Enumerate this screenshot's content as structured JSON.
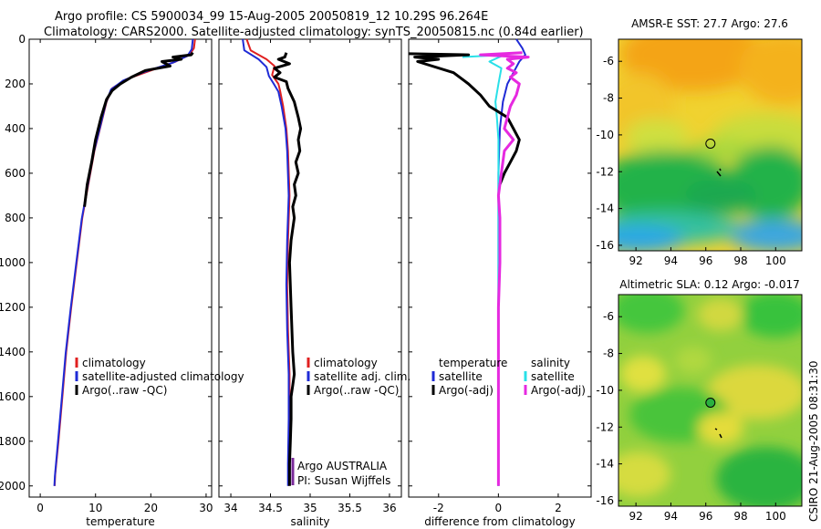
{
  "titles": {
    "line1": "Argo profile: CS 5900034_99 15-Aug-2005 20050819_12 10.29S 96.264E",
    "line2": "Climatology: CARS2000. Satellite-adjusted climatology: synTS_20050815.nc (0.84d earlier)"
  },
  "side_label": "CSIRO 21-Aug-2005 08:31:30",
  "credits": [
    "Argo AUSTRALIA",
    "PI: Susan Wijffels"
  ],
  "colors": {
    "climatology": "#e02020",
    "satellite": "#1f2bd6",
    "argo": "#000000",
    "sat_salinity": "#29e0e8",
    "argo_salinity": "#e629e0"
  },
  "chart_data": [
    {
      "id": "temperature",
      "type": "line",
      "xlabel": "temperature",
      "ylabel": "",
      "xlim": [
        -2,
        31
      ],
      "ylim": [
        2050,
        0
      ],
      "xticks": [
        0,
        10,
        20,
        30
      ],
      "yticks": [
        0,
        200,
        400,
        600,
        800,
        1000,
        1200,
        1400,
        1600,
        1800,
        2000
      ],
      "legend": [
        "climatology",
        "satellite-adjusted climatology",
        "Argo(..raw -QC)"
      ],
      "series": [
        {
          "name": "climatology",
          "color": "#e02020",
          "width": 2,
          "points": [
            [
              28,
              0
            ],
            [
              27.8,
              40
            ],
            [
              27,
              70
            ],
            [
              24.5,
              100
            ],
            [
              20,
              140
            ],
            [
              15.5,
              180
            ],
            [
              13,
              220
            ],
            [
              12,
              280
            ],
            [
              11,
              380
            ],
            [
              9.8,
              500
            ],
            [
              8.7,
              650
            ],
            [
              7.6,
              800
            ],
            [
              6.6,
              1000
            ],
            [
              5.6,
              1200
            ],
            [
              4.7,
              1400
            ],
            [
              4,
              1600
            ],
            [
              3.3,
              1800
            ],
            [
              2.7,
              1950
            ],
            [
              2.6,
              2000
            ]
          ]
        },
        {
          "name": "satellite-adjusted climatology",
          "color": "#1f2bd6",
          "width": 2,
          "points": [
            [
              27.6,
              0
            ],
            [
              27.4,
              45
            ],
            [
              26.6,
              75
            ],
            [
              24,
              105
            ],
            [
              19,
              145
            ],
            [
              15,
              185
            ],
            [
              12.8,
              225
            ],
            [
              11.9,
              285
            ],
            [
              10.9,
              385
            ],
            [
              9.7,
              505
            ],
            [
              8.6,
              655
            ],
            [
              7.5,
              805
            ],
            [
              6.5,
              1005
            ],
            [
              5.5,
              1205
            ],
            [
              4.6,
              1405
            ],
            [
              3.9,
              1605
            ],
            [
              3.2,
              1805
            ],
            [
              2.65,
              1955
            ],
            [
              2.55,
              2000
            ]
          ]
        },
        {
          "name": "Argo(..raw -QC)",
          "color": "#000000",
          "width": 3,
          "points": [
            [
              27.6,
              60
            ],
            [
              27.3,
              70
            ],
            [
              24,
              80
            ],
            [
              25.5,
              90
            ],
            [
              22,
              100
            ],
            [
              23.5,
              120
            ],
            [
              19,
              140
            ],
            [
              16.5,
              170
            ],
            [
              14.5,
              200
            ],
            [
              13,
              230
            ],
            [
              12,
              270
            ],
            [
              11,
              350
            ],
            [
              10,
              450
            ],
            [
              9.3,
              550
            ],
            [
              8.5,
              650
            ],
            [
              8,
              750
            ]
          ]
        }
      ]
    },
    {
      "id": "salinity",
      "type": "line",
      "xlabel": "salinity",
      "ylabel": "",
      "xlim": [
        33.85,
        36.15
      ],
      "ylim": [
        2050,
        0
      ],
      "xticks": [
        34,
        34.5,
        35,
        35.5,
        36
      ],
      "yticks": [
        0,
        200,
        400,
        600,
        800,
        1000,
        1200,
        1400,
        1600,
        1800,
        2000
      ],
      "legend": [
        "climatology",
        "satellite adj. clim.",
        "Argo(..raw -QC)"
      ],
      "series": [
        {
          "name": "climatology",
          "color": "#e02020",
          "width": 2,
          "points": [
            [
              34.2,
              0
            ],
            [
              34.25,
              50
            ],
            [
              34.45,
              90
            ],
            [
              34.55,
              120
            ],
            [
              34.52,
              160
            ],
            [
              34.6,
              200
            ],
            [
              34.62,
              230
            ],
            [
              34.66,
              300
            ],
            [
              34.7,
              400
            ],
            [
              34.72,
              500
            ],
            [
              34.74,
              700
            ],
            [
              34.72,
              900
            ],
            [
              34.71,
              1100
            ],
            [
              34.72,
              1300
            ],
            [
              34.74,
              1500
            ],
            [
              34.74,
              1700
            ],
            [
              34.73,
              1900
            ],
            [
              34.73,
              2000
            ]
          ]
        },
        {
          "name": "satellite adj. clim.",
          "color": "#1f2bd6",
          "width": 2,
          "points": [
            [
              34.15,
              0
            ],
            [
              34.17,
              50
            ],
            [
              34.35,
              90
            ],
            [
              34.45,
              125
            ],
            [
              34.48,
              165
            ],
            [
              34.55,
              205
            ],
            [
              34.6,
              235
            ],
            [
              34.64,
              300
            ],
            [
              34.69,
              400
            ],
            [
              34.71,
              500
            ],
            [
              34.73,
              700
            ],
            [
              34.71,
              900
            ],
            [
              34.7,
              1100
            ],
            [
              34.71,
              1300
            ],
            [
              34.73,
              1500
            ],
            [
              34.73,
              1700
            ],
            [
              34.72,
              1900
            ],
            [
              34.72,
              2000
            ]
          ]
        },
        {
          "name": "Argo(..raw -QC)",
          "color": "#000000",
          "width": 3,
          "points": [
            [
              34.7,
              60
            ],
            [
              34.68,
              80
            ],
            [
              34.6,
              90
            ],
            [
              34.74,
              110
            ],
            [
              34.55,
              130
            ],
            [
              34.62,
              150
            ],
            [
              34.55,
              170
            ],
            [
              34.7,
              190
            ],
            [
              34.72,
              220
            ],
            [
              34.8,
              280
            ],
            [
              34.85,
              350
            ],
            [
              34.88,
              400
            ],
            [
              34.85,
              450
            ],
            [
              34.87,
              500
            ],
            [
              34.82,
              550
            ],
            [
              34.85,
              600
            ],
            [
              34.8,
              650
            ],
            [
              34.82,
              700
            ],
            [
              34.78,
              750
            ],
            [
              34.8,
              800
            ],
            [
              34.76,
              900
            ],
            [
              34.74,
              1000
            ],
            [
              34.76,
              1200
            ],
            [
              34.78,
              1400
            ],
            [
              34.8,
              1500
            ],
            [
              34.78,
              1550
            ],
            [
              34.76,
              1600
            ],
            [
              34.76,
              1700
            ],
            [
              34.75,
              1800
            ],
            [
              34.74,
              1900
            ],
            [
              34.74,
              2000
            ]
          ]
        }
      ]
    },
    {
      "id": "difference",
      "type": "line",
      "xlabel": "difference from climatology",
      "ylabel": "",
      "xlim": [
        -3,
        3.1
      ],
      "ylim": [
        2050,
        0
      ],
      "xticks": [
        -2,
        0,
        2
      ],
      "yticks": [
        0,
        200,
        400,
        600,
        800,
        1000,
        1200,
        1400,
        1600,
        1800,
        2000
      ],
      "legend_left": [
        "temperature",
        "satellite",
        "Argo(-adj)"
      ],
      "legend_right": [
        "salinity",
        "satellite",
        "Argo(-adj)"
      ],
      "series": [
        {
          "name": "temperature satellite",
          "color": "#1f2bd6",
          "width": 2,
          "points": [
            [
              0.6,
              0
            ],
            [
              0.8,
              40
            ],
            [
              0.9,
              70
            ],
            [
              0.7,
              100
            ],
            [
              0.5,
              150
            ],
            [
              0.3,
              200
            ],
            [
              0.15,
              280
            ],
            [
              0.05,
              400
            ],
            [
              0,
              600
            ],
            [
              0,
              2000
            ]
          ]
        },
        {
          "name": "salinity satellite",
          "color": "#29e0e8",
          "width": 2,
          "points": [
            [
              -1.2,
              80
            ],
            [
              0.2,
              70
            ],
            [
              -0.3,
              100
            ],
            [
              0.1,
              130
            ],
            [
              0,
              200
            ],
            [
              -0.1,
              280
            ],
            [
              -0.05,
              350
            ],
            [
              0,
              450
            ],
            [
              0,
              600
            ],
            [
              0,
              1000
            ],
            [
              0,
              1500
            ],
            [
              0,
              2000
            ]
          ]
        },
        {
          "name": "temperature Argo(-adj)",
          "color": "#000000",
          "width": 3,
          "points": [
            [
              -3,
              65
            ],
            [
              -1,
              70
            ],
            [
              -2.8,
              80
            ],
            [
              -2,
              90
            ],
            [
              -2.7,
              100
            ],
            [
              -1.5,
              150
            ],
            [
              -1,
              200
            ],
            [
              -0.6,
              250
            ],
            [
              -0.3,
              300
            ],
            [
              0.3,
              350
            ],
            [
              0.5,
              400
            ],
            [
              0.7,
              450
            ],
            [
              0.6,
              500
            ],
            [
              0.4,
              550
            ],
            [
              0.2,
              600
            ],
            [
              0.05,
              650
            ]
          ]
        },
        {
          "name": "salinity Argo(-adj)",
          "color": "#e629e0",
          "width": 3,
          "points": [
            [
              0.8,
              60
            ],
            [
              -0.6,
              70
            ],
            [
              1,
              80
            ],
            [
              0.3,
              90
            ],
            [
              0.5,
              110
            ],
            [
              0.3,
              130
            ],
            [
              0.6,
              150
            ],
            [
              0.4,
              170
            ],
            [
              0.7,
              200
            ],
            [
              0.6,
              250
            ],
            [
              0.4,
              300
            ],
            [
              0.3,
              350
            ],
            [
              0.2,
              400
            ],
            [
              0.5,
              450
            ],
            [
              0.2,
              500
            ],
            [
              0.1,
              600
            ],
            [
              0,
              700
            ],
            [
              0.05,
              800
            ],
            [
              0.05,
              1000
            ],
            [
              0,
              1200
            ],
            [
              0,
              1500
            ],
            [
              0,
              1800
            ],
            [
              0,
              2000
            ]
          ]
        }
      ]
    },
    {
      "id": "sst_map",
      "type": "heatmap",
      "title": "AMSR-E SST: 27.7 Argo: 27.6",
      "xlim": [
        91,
        101.5
      ],
      "ylim": [
        -16.3,
        -4.8
      ],
      "xticks": [
        92,
        94,
        96,
        98,
        100
      ],
      "yticks": [
        -6,
        -8,
        -10,
        -12,
        -14,
        -16
      ],
      "argo_position": [
        96.264,
        -10.29
      ]
    },
    {
      "id": "sla_map",
      "type": "heatmap",
      "title": "Altimetric SLA: 0.12 Argo: -0.017",
      "xlim": [
        91,
        101.5
      ],
      "ylim": [
        -16.3,
        -4.8
      ],
      "xticks": [
        92,
        94,
        96,
        98,
        100
      ],
      "yticks": [
        -6,
        -8,
        -10,
        -12,
        -14,
        -16
      ],
      "argo_position": [
        96.264,
        -10.29
      ]
    }
  ]
}
